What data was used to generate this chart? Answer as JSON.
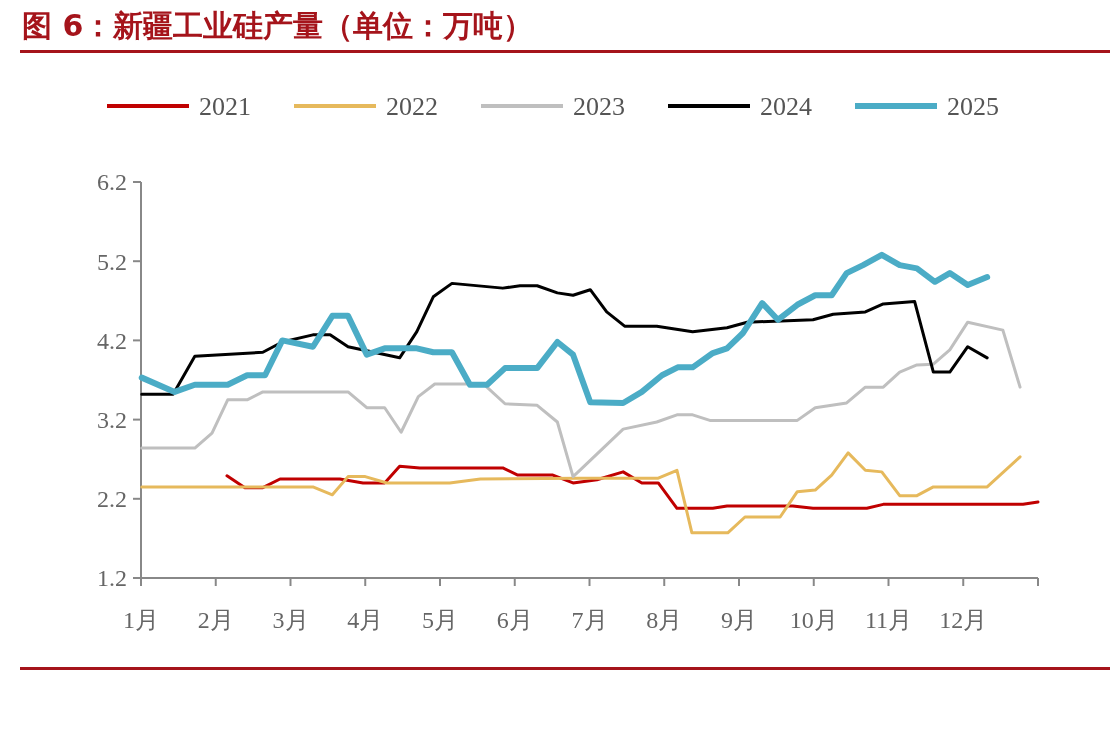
{
  "chart_data": {
    "type": "line",
    "title": "图 6：新疆工业硅产量（单位：万吨）",
    "xlim": [
      1,
      13
    ],
    "xticks": [
      {
        "value": 1,
        "label": "1月"
      },
      {
        "value": 2,
        "label": "2月"
      },
      {
        "value": 3,
        "label": "3月"
      },
      {
        "value": 4,
        "label": "4月"
      },
      {
        "value": 5,
        "label": "5月"
      },
      {
        "value": 6,
        "label": "6月"
      },
      {
        "value": 7,
        "label": "7月"
      },
      {
        "value": 8,
        "label": "8月"
      },
      {
        "value": 9,
        "label": "9月"
      },
      {
        "value": 10,
        "label": "10月"
      },
      {
        "value": 11,
        "label": "11月"
      },
      {
        "value": 12,
        "label": "12月"
      }
    ],
    "ylim": [
      1.2,
      6.2
    ],
    "yticks": [
      1.2,
      2.2,
      3.2,
      4.2,
      5.2,
      6.2
    ],
    "grid": false,
    "legend": "top",
    "marker": "none",
    "line_style": "solid",
    "series": [
      {
        "name": "2021",
        "color": "#c00000",
        "x": [
          2.15,
          2.39,
          2.63,
          2.86,
          3.66,
          3.97,
          4.26,
          4.46,
          4.73,
          5.84,
          6.04,
          6.51,
          6.78,
          7.1,
          7.45,
          7.7,
          7.92,
          8.17,
          8.65,
          8.84,
          9.72,
          9.99,
          10.71,
          10.93,
          12.8,
          13.0
        ],
        "values": [
          2.49,
          2.34,
          2.34,
          2.45,
          2.45,
          2.4,
          2.4,
          2.61,
          2.59,
          2.59,
          2.5,
          2.5,
          2.4,
          2.44,
          2.54,
          2.4,
          2.4,
          2.08,
          2.08,
          2.11,
          2.11,
          2.08,
          2.08,
          2.13,
          2.13,
          2.16
        ]
      },
      {
        "name": "2022",
        "color": "#e6b95c",
        "x": [
          1.01,
          3.3,
          3.56,
          3.77,
          4.0,
          4.29,
          5.13,
          5.54,
          6.87,
          7.92,
          8.17,
          8.37,
          8.85,
          9.08,
          9.55,
          9.78,
          10.02,
          10.24,
          10.46,
          10.69,
          10.91,
          11.15,
          11.38,
          11.6,
          12.32,
          12.76
        ],
        "values": [
          2.35,
          2.35,
          2.25,
          2.48,
          2.48,
          2.4,
          2.4,
          2.45,
          2.46,
          2.46,
          2.56,
          1.77,
          1.77,
          1.97,
          1.97,
          2.29,
          2.31,
          2.5,
          2.78,
          2.56,
          2.54,
          2.24,
          2.24,
          2.35,
          2.35,
          2.73
        ]
      },
      {
        "name": "2023",
        "color": "#bfbfbf",
        "x": [
          1.01,
          1.72,
          1.95,
          2.16,
          2.42,
          2.63,
          3.77,
          4.02,
          4.26,
          4.48,
          4.71,
          4.93,
          5.58,
          5.87,
          6.3,
          6.57,
          6.78,
          6.87,
          7.45,
          7.9,
          8.17,
          8.38,
          8.61,
          9.78,
          10.02,
          10.44,
          10.69,
          10.93,
          11.15,
          11.38,
          11.6,
          11.82,
          12.06,
          12.53,
          12.76
        ],
        "values": [
          2.84,
          2.84,
          3.03,
          3.45,
          3.45,
          3.55,
          3.55,
          3.35,
          3.35,
          3.04,
          3.49,
          3.65,
          3.65,
          3.4,
          3.38,
          3.17,
          2.48,
          2.56,
          3.08,
          3.17,
          3.26,
          3.26,
          3.19,
          3.19,
          3.35,
          3.41,
          3.61,
          3.61,
          3.8,
          3.89,
          3.9,
          4.08,
          4.43,
          4.33,
          3.61
        ]
      },
      {
        "name": "2024",
        "color": "#000000",
        "x": [
          1.01,
          1.43,
          1.72,
          2.63,
          2.89,
          3.3,
          3.53,
          3.77,
          4.46,
          4.69,
          4.91,
          5.16,
          5.84,
          6.07,
          6.3,
          6.57,
          6.78,
          7.01,
          7.23,
          7.47,
          7.9,
          8.38,
          8.84,
          9.11,
          9.99,
          10.26,
          10.69,
          10.93,
          11.35,
          11.6,
          11.82,
          12.06,
          12.32
        ],
        "values": [
          3.52,
          3.52,
          4.0,
          4.05,
          4.18,
          4.27,
          4.27,
          4.12,
          3.98,
          4.31,
          4.75,
          4.92,
          4.86,
          4.89,
          4.89,
          4.8,
          4.77,
          4.84,
          4.56,
          4.38,
          4.38,
          4.31,
          4.36,
          4.43,
          4.46,
          4.53,
          4.56,
          4.66,
          4.69,
          3.8,
          3.8,
          4.12,
          3.98
        ]
      },
      {
        "name": "2025",
        "color": "#4bacc6",
        "x": [
          1.01,
          1.45,
          1.72,
          2.16,
          2.42,
          2.66,
          2.89,
          3.3,
          3.56,
          3.77,
          4.02,
          4.26,
          4.69,
          4.91,
          5.16,
          5.4,
          5.63,
          5.87,
          6.3,
          6.57,
          6.78,
          7.01,
          7.45,
          7.7,
          7.97,
          8.18,
          8.38,
          8.65,
          8.84,
          9.05,
          9.31,
          9.52,
          9.78,
          10.02,
          10.24,
          10.44,
          10.66,
          10.91,
          11.15,
          11.38,
          11.62,
          11.82,
          12.06,
          12.32
        ],
        "values": [
          3.73,
          3.55,
          3.64,
          3.64,
          3.76,
          3.76,
          4.2,
          4.12,
          4.51,
          4.51,
          4.02,
          4.1,
          4.1,
          4.05,
          4.05,
          3.64,
          3.64,
          3.85,
          3.85,
          4.18,
          4.02,
          3.42,
          3.41,
          3.55,
          3.76,
          3.86,
          3.86,
          4.04,
          4.1,
          4.29,
          4.67,
          4.46,
          4.65,
          4.77,
          4.77,
          5.05,
          5.15,
          5.28,
          5.15,
          5.11,
          4.94,
          5.05,
          4.9,
          5.0
        ]
      }
    ]
  }
}
